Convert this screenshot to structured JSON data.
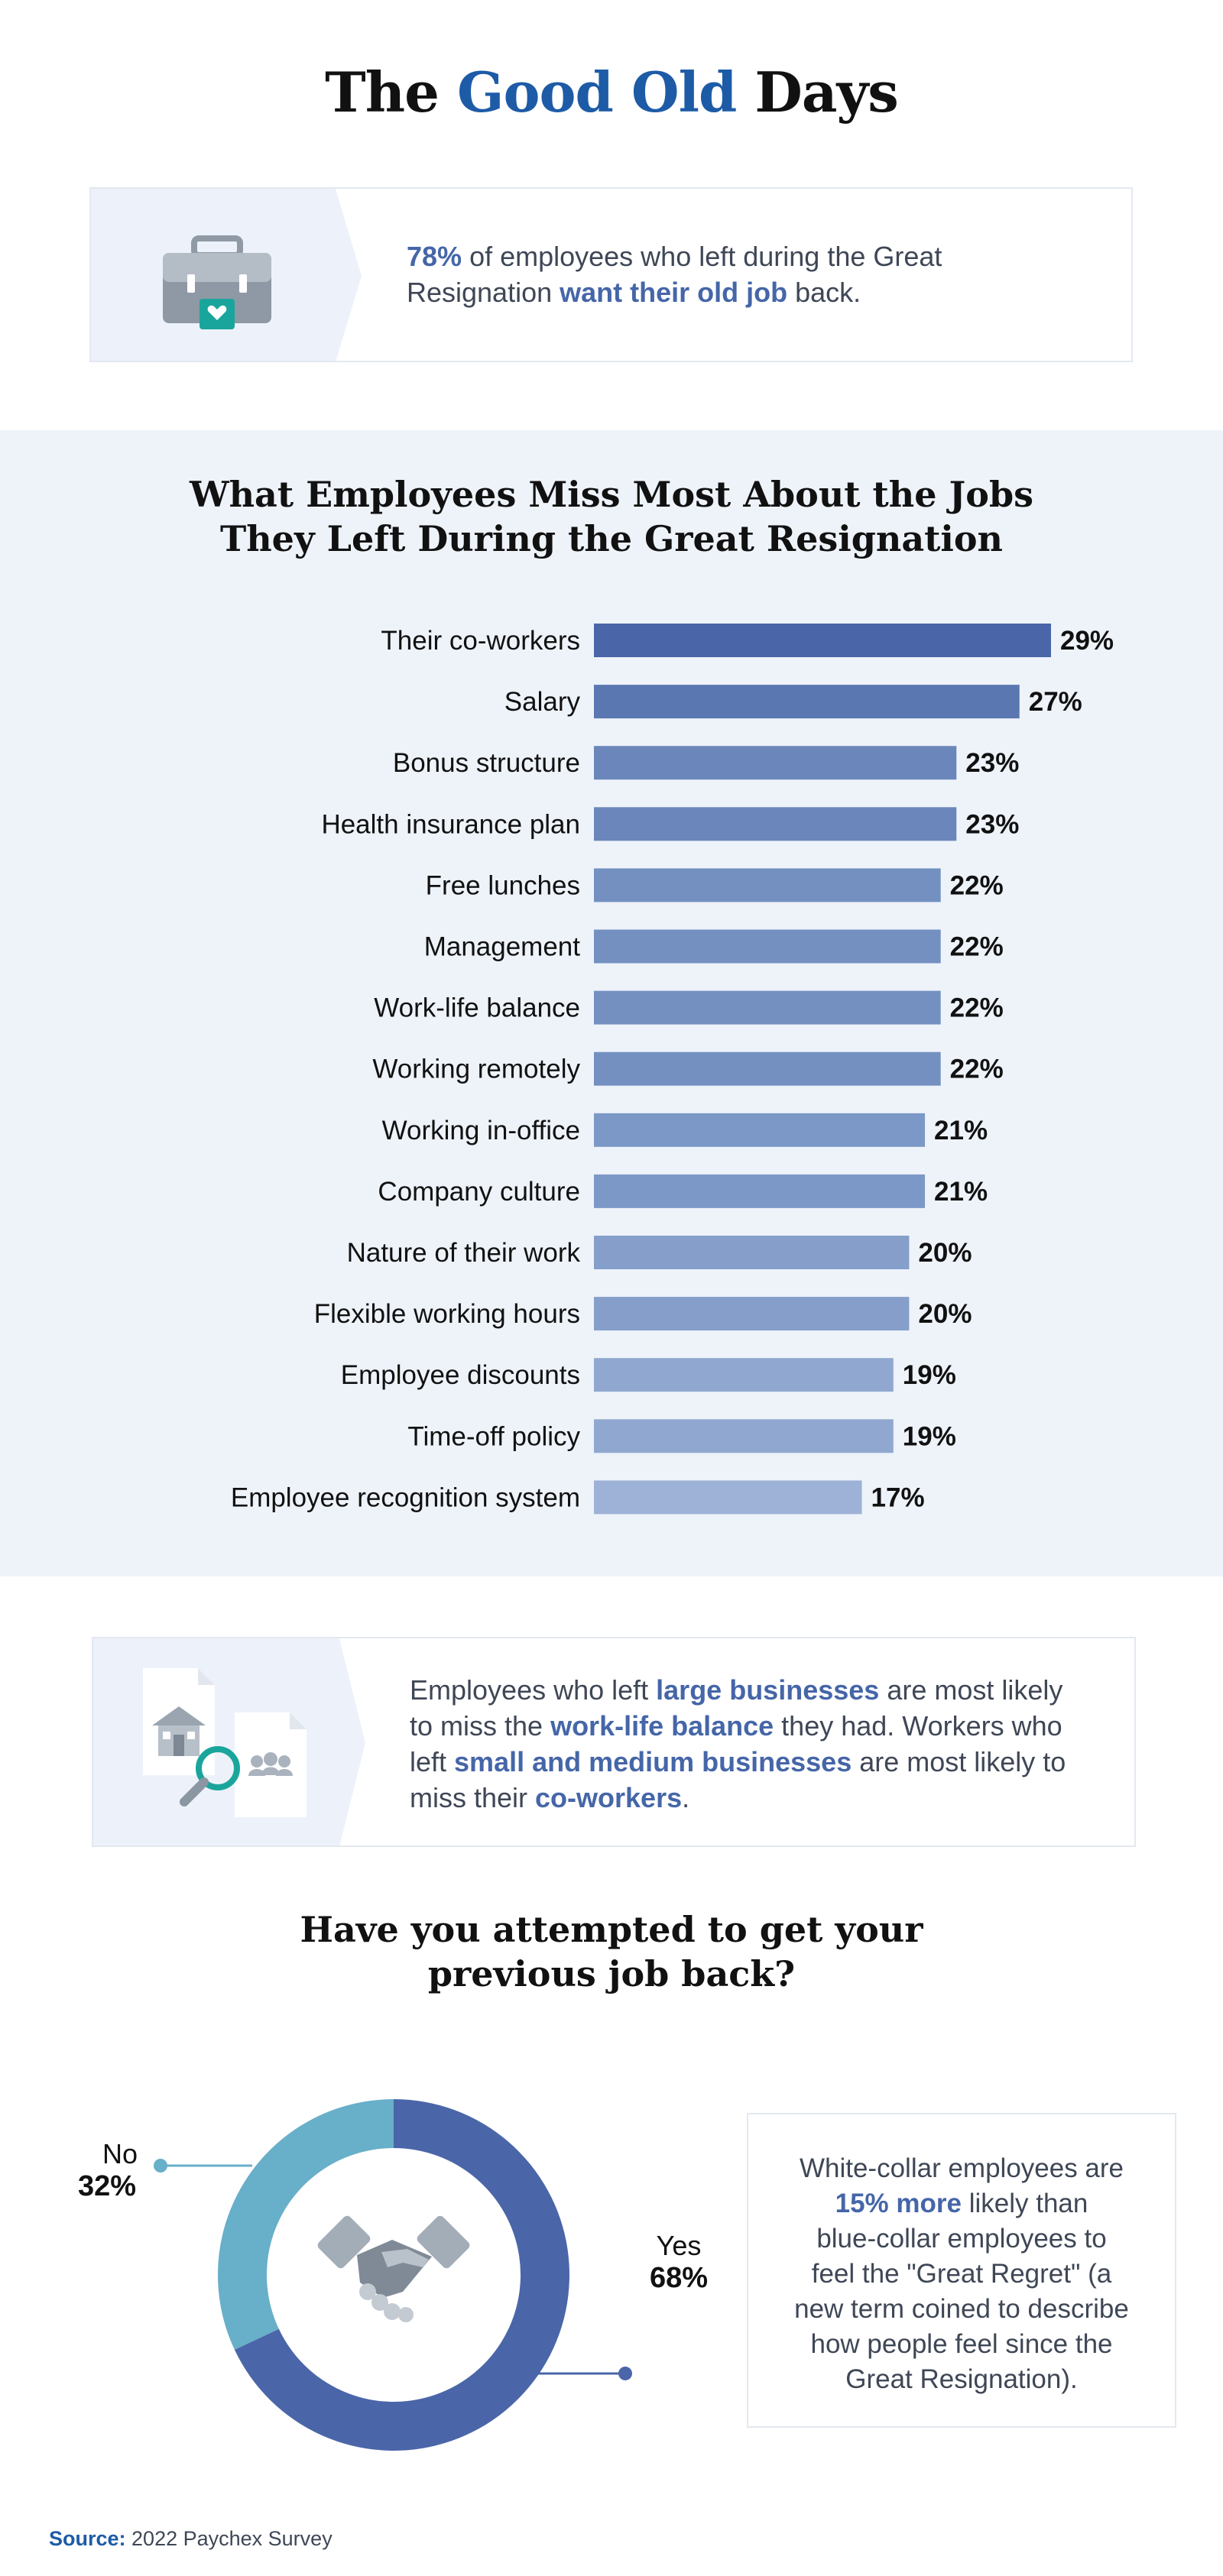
{
  "title": {
    "prefix": "The ",
    "accent": "Good Old",
    "suffix": " Days"
  },
  "callout1": {
    "parts": [
      {
        "text": "78%",
        "hl": true
      },
      {
        "text": " of employees who left during the Great Resignation ",
        "hl": false
      },
      {
        "text": "want their old job",
        "hl": true
      },
      {
        "text": " back.",
        "hl": false
      }
    ],
    "icon": "briefcase-heart-icon"
  },
  "chart_data": {
    "type": "bar",
    "orientation": "horizontal",
    "title": "What Employees Miss Most About the Jobs They Left During the Great Resignation",
    "title_lines": [
      "What Employees Miss Most About the Jobs",
      "They Left During the Great Resignation"
    ],
    "categories": [
      "Their co-workers",
      "Salary",
      "Bonus structure",
      "Health insurance plan",
      "Free lunches",
      "Management",
      "Work-life balance",
      "Working remotely",
      "Working in-office",
      "Company culture",
      "Nature of their work",
      "Flexible working hours",
      "Employee discounts",
      "Time-off policy",
      "Employee recognition system"
    ],
    "values": [
      29,
      27,
      23,
      23,
      22,
      22,
      22,
      22,
      21,
      21,
      20,
      20,
      19,
      19,
      17
    ],
    "value_labels": [
      "29%",
      "27%",
      "23%",
      "23%",
      "22%",
      "22%",
      "22%",
      "22%",
      "21%",
      "21%",
      "20%",
      "20%",
      "19%",
      "19%",
      "17%"
    ],
    "unit": "%",
    "xlim": [
      0,
      29
    ],
    "grid": false,
    "colors": [
      "#4a66a9",
      "#5b77b1",
      "#6a86bb",
      "#6a86bb",
      "#7390c1",
      "#7390c1",
      "#7390c1",
      "#7390c1",
      "#7c98c6",
      "#7c98c6",
      "#859fca",
      "#859fca",
      "#90a8cf",
      "#90a8cf",
      "#9db2d6"
    ]
  },
  "callout2": {
    "lines": [
      [
        {
          "text": "Employees who left ",
          "hl": false
        },
        {
          "text": "large businesses",
          "hl": true
        },
        {
          "text": " are most likely",
          "hl": false
        }
      ],
      [
        {
          "text": "to miss the ",
          "hl": false
        },
        {
          "text": "work-life balance",
          "hl": true
        },
        {
          "text": " they had. Workers who",
          "hl": false
        }
      ],
      [
        {
          "text": "left ",
          "hl": false
        },
        {
          "text": "small and medium businesses",
          "hl": true
        },
        {
          "text": " are most likely to",
          "hl": false
        }
      ],
      [
        {
          "text": "miss their ",
          "hl": false
        },
        {
          "text": "co-workers",
          "hl": true
        },
        {
          "text": ".",
          "hl": false
        }
      ]
    ],
    "icon": "business-search-icon"
  },
  "donut": {
    "title_lines": [
      "Have you attempted to get your",
      "previous job back?"
    ],
    "chart_data": {
      "type": "pie",
      "variant": "donut",
      "categories": [
        "Yes",
        "No"
      ],
      "values": [
        68,
        32
      ],
      "value_labels": [
        "68%",
        "32%"
      ],
      "colors": [
        "#4a66a9",
        "#68afc9"
      ]
    },
    "center_icon": "handshake-icon"
  },
  "regret": {
    "lines": [
      [
        {
          "text": "White-collar employees are",
          "hl": false
        }
      ],
      [
        {
          "text": "15% more",
          "hl": true
        },
        {
          "text": " likely than",
          "hl": false
        }
      ],
      [
        {
          "text": "blue-collar employees to",
          "hl": false
        }
      ],
      [
        {
          "text": "feel the \"Great Regret\" (a",
          "hl": false
        }
      ],
      [
        {
          "text": "new term coined to describe",
          "hl": false
        }
      ],
      [
        {
          "text": "how people feel since the",
          "hl": false
        }
      ],
      [
        {
          "text": "Great Resignation).",
          "hl": false
        }
      ]
    ]
  },
  "source": {
    "label": "Source:",
    "text": " 2022 Paychex Survey"
  }
}
